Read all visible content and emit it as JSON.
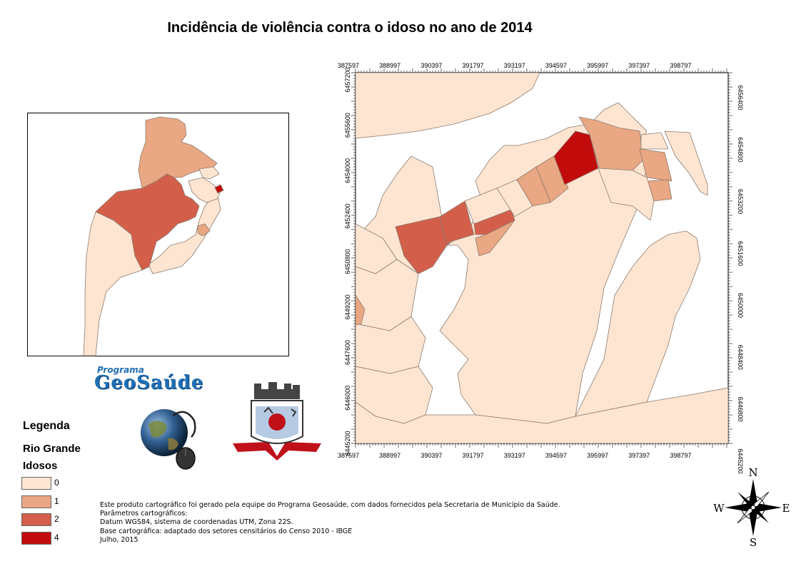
{
  "title": "Incidência de violência contra o idoso no ano de 2014",
  "colors": {
    "class_0": "#fde5d2",
    "class_1": "#e9a783",
    "class_2": "#d35f4a",
    "class_4": "#c20c0c",
    "border": "#8b7b6e"
  },
  "axes": {
    "x_ticks": [
      "387597",
      "388997",
      "390397",
      "391797",
      "393197",
      "394597",
      "395997",
      "397397",
      "398797"
    ],
    "y_ticks_left": [
      "6445200",
      "6446000",
      "6447600",
      "6449200",
      "6450800",
      "6452400",
      "6454000",
      "6455600",
      "6457200"
    ],
    "y_ticks_right": [
      "6445200",
      "6446800",
      "6448400",
      "6450000",
      "6451600",
      "6453200",
      "6454800",
      "6456400"
    ]
  },
  "legend": {
    "title": "Legenda",
    "layer": "Rio Grande",
    "field": "Idosos",
    "items": [
      {
        "label": "0",
        "color": "#fde5d2"
      },
      {
        "label": "1",
        "color": "#e9a783"
      },
      {
        "label": "2",
        "color": "#d35f4a"
      },
      {
        "label": "4",
        "color": "#c20c0c"
      }
    ]
  },
  "logos": {
    "geosaude_top": "Programa",
    "geosaude_main": "GeoSaúde"
  },
  "credits": [
    "Este produto cartográfico foi gerado pela equipe do Programa Geosaúde, com dados fornecidos pela Secretaria de Município da Saúde.",
    "Parâmetros cartográficos:",
    "Datum WGS84, sistema de coordenadas UTM, Zona 22S.",
    "Base cartográfica: adaptado dos setores censitários do Censo 2010 - IBGE",
    "Julho, 2015"
  ],
  "compass": {
    "n": "N",
    "s": "S",
    "e": "E",
    "w": "W"
  }
}
